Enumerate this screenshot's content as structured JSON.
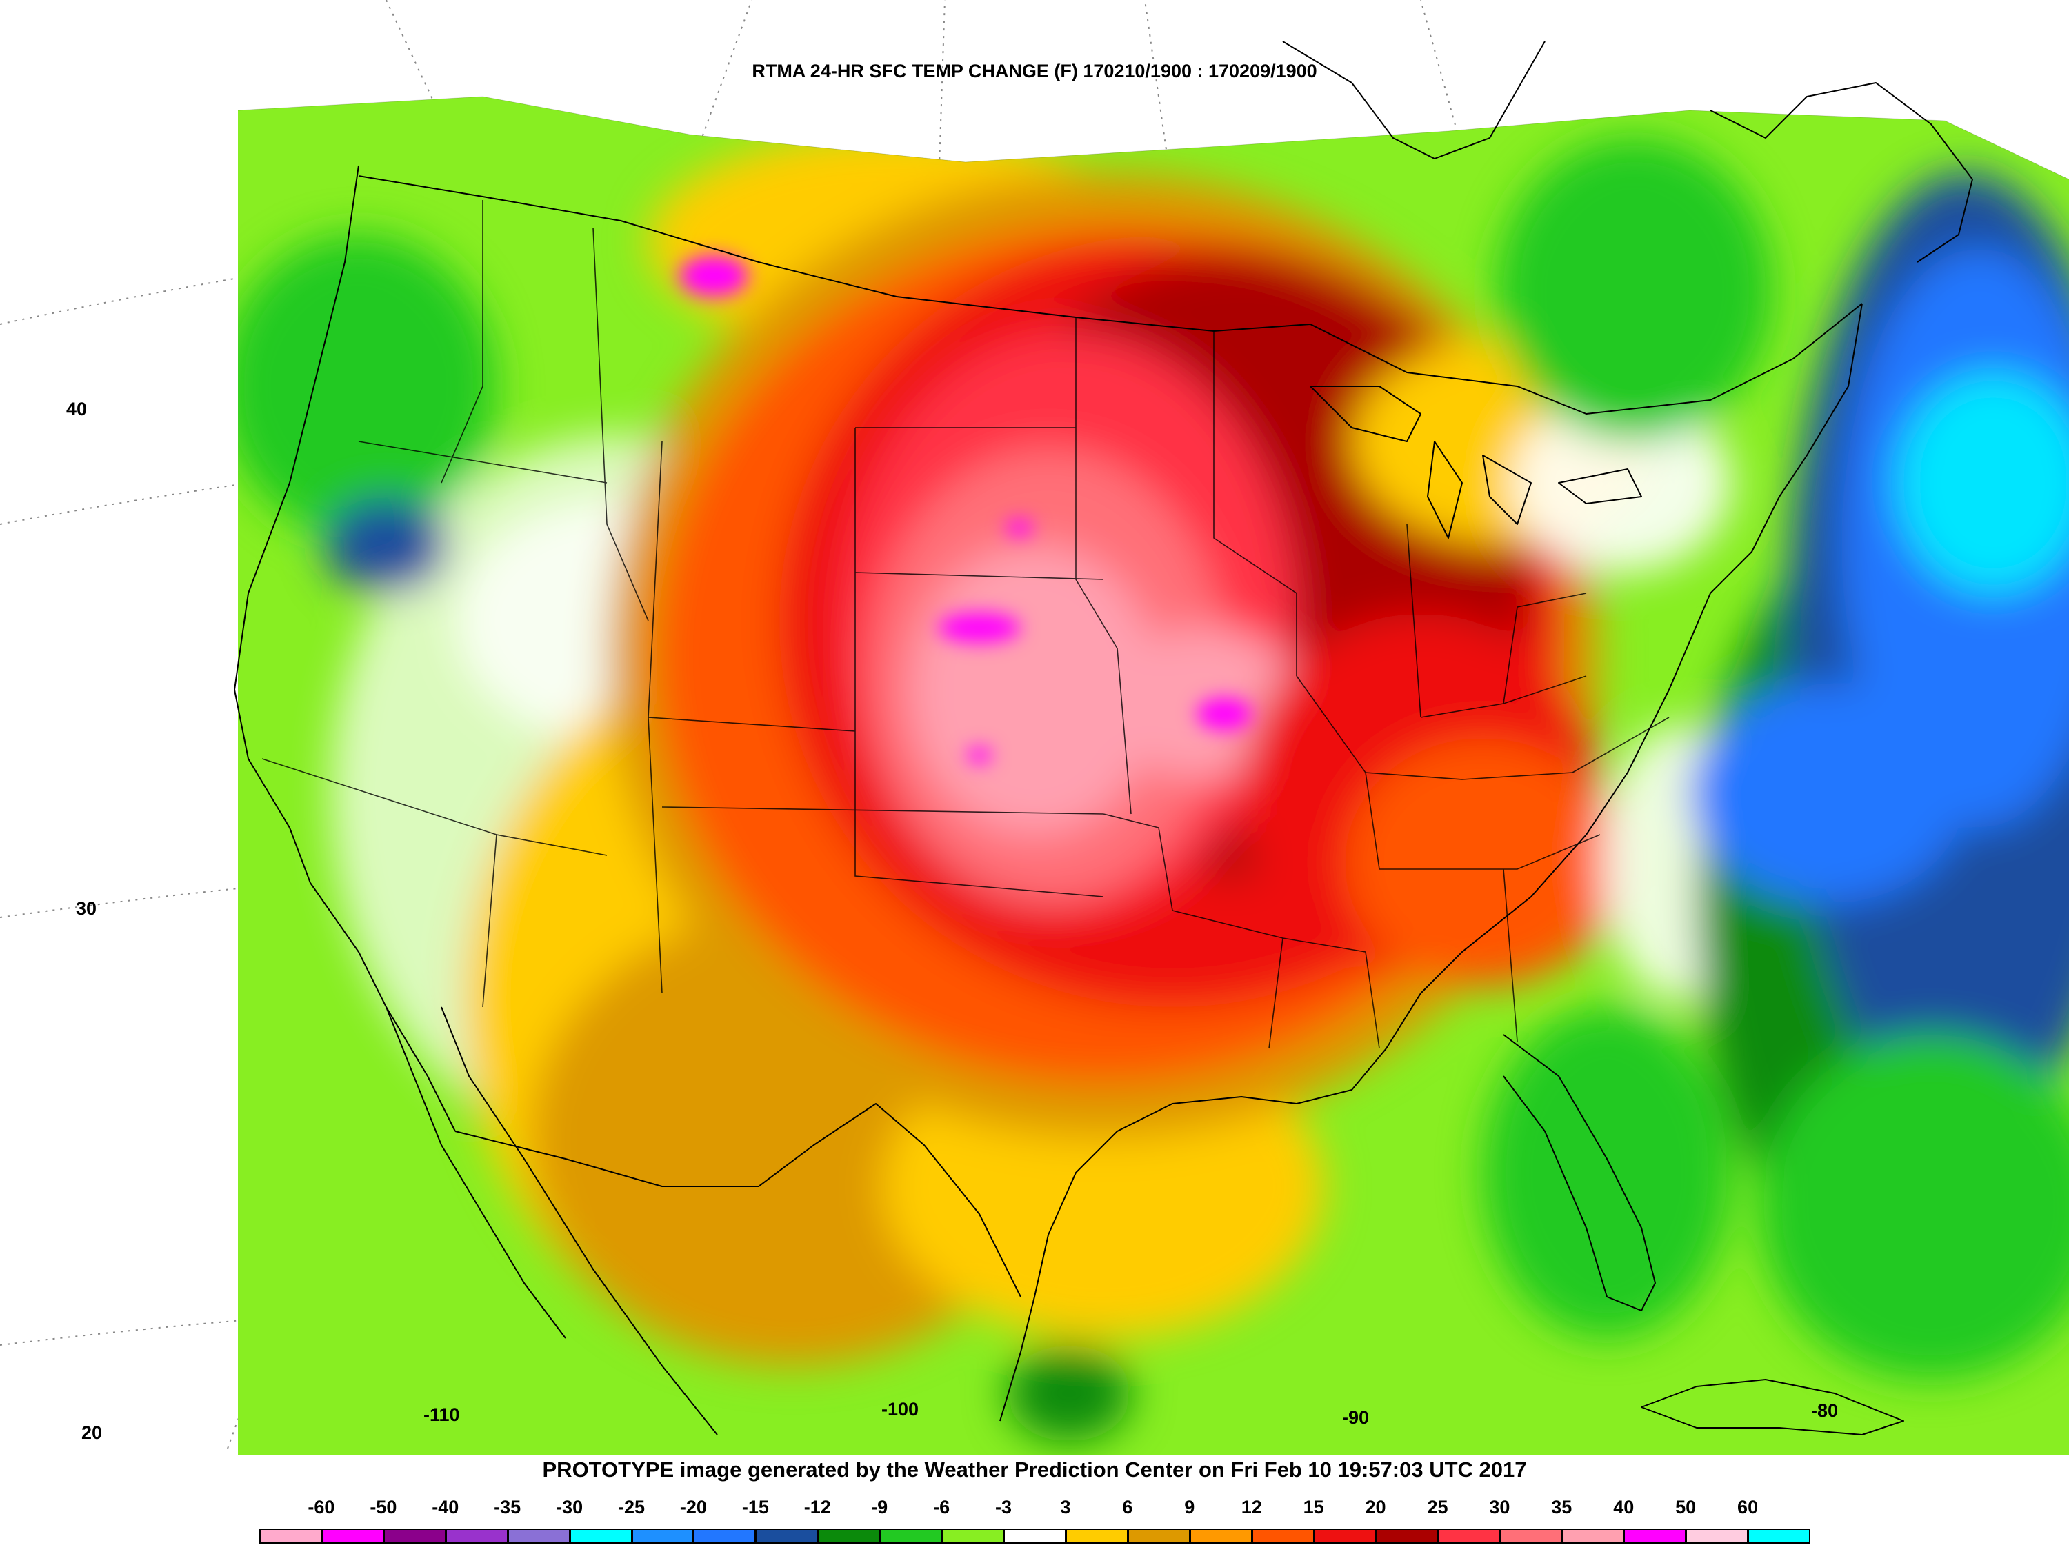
{
  "title": "RTMA 24-HR SFC TEMP CHANGE (F) 170210/1900 : 170209/1900",
  "footer": "PROTOTYPE image generated by the Weather Prediction Center on Fri Feb 10 19:57:03 UTC 2017",
  "latitude_labels": [
    "40",
    "30",
    "20"
  ],
  "longitude_labels": [
    "-110",
    "-100",
    "-90",
    "-80"
  ],
  "legend": {
    "labels": [
      "-60",
      "-50",
      "-40",
      "-35",
      "-30",
      "-25",
      "-20",
      "-15",
      "-12",
      "-9",
      "-6",
      "-3",
      "3",
      "6",
      "9",
      "12",
      "15",
      "20",
      "25",
      "30",
      "35",
      "40",
      "50",
      "60"
    ],
    "colors": [
      "#ffaacc",
      "#ff00ff",
      "#8b008b",
      "#9932cc",
      "#8a70d6",
      "#00ffff",
      "#1e90ff",
      "#2277ff",
      "#1a4e9e",
      "#0b8a0b",
      "#22c922",
      "#88ee22",
      "#ffffff",
      "#ffcc00",
      "#dd9900",
      "#ff9900",
      "#ff5500",
      "#ee1111",
      "#aa0000",
      "#ff3344",
      "#ff6f78",
      "#ffa0b0",
      "#ff00ff",
      "#ffcce0",
      "#00ffff"
    ]
  },
  "colors": {
    "warm_strong": "#aa0000",
    "warm": "#ee1111",
    "warm_mid": "#ff6f78",
    "warm_light": "#ffa0b0",
    "peak": "#ff00ff",
    "yellow": "#ffcc00",
    "orange": "#dd9900",
    "green_light": "#88ee22",
    "green": "#22c922",
    "green_dark": "#0b8a0b",
    "blue": "#2277ff",
    "navy": "#1a4e9e",
    "cyan": "#00e5ff"
  }
}
